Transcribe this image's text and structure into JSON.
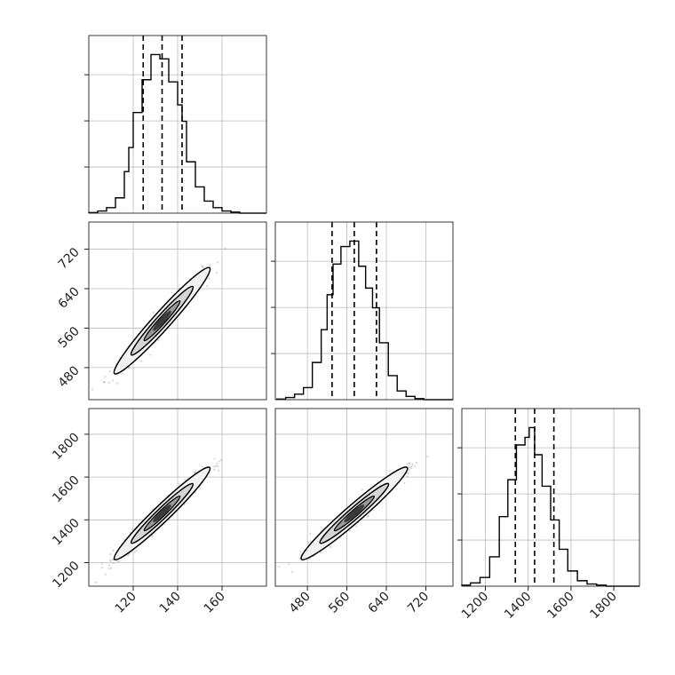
{
  "chart_data": {
    "type": "corner",
    "colors": {
      "line": "#000000",
      "grid": "#bbbbbb",
      "scatter": "#444444",
      "axis": "#222222"
    },
    "grid": true,
    "parameters": [
      {
        "range": [
          100,
          180
        ],
        "ticks": [
          120,
          140,
          160
        ],
        "tick_labels": [
          "120",
          "140",
          "160"
        ],
        "quantiles": [
          124.5,
          133,
          142
        ]
      },
      {
        "range": [
          415,
          775
        ],
        "ticks": [
          480,
          560,
          640,
          720
        ],
        "tick_labels": [
          "480",
          "560",
          "640",
          "720"
        ],
        "quantiles": [
          530,
          575,
          620
        ]
      },
      {
        "range": [
          1090,
          1920
        ],
        "ticks": [
          1200,
          1400,
          1600,
          1800
        ],
        "tick_labels": [
          "1200",
          "1400",
          "1600",
          "1800"
        ],
        "quantiles": [
          1340,
          1430,
          1520
        ]
      }
    ],
    "histograms": [
      {
        "param": 0,
        "bins": [
          {
            "x0": 100,
            "x1": 104,
            "count": 0.5
          },
          {
            "x0": 104,
            "x1": 108,
            "count": 2
          },
          {
            "x0": 108,
            "x1": 112,
            "count": 5
          },
          {
            "x0": 112,
            "x1": 116,
            "count": 14
          },
          {
            "x0": 116,
            "x1": 118,
            "count": 38
          },
          {
            "x0": 118,
            "x1": 120,
            "count": 60
          },
          {
            "x0": 120,
            "x1": 124,
            "count": 92
          },
          {
            "x0": 124,
            "x1": 128,
            "count": 122
          },
          {
            "x0": 128,
            "x1": 132,
            "count": 145
          },
          {
            "x0": 132,
            "x1": 136,
            "count": 141
          },
          {
            "x0": 136,
            "x1": 140,
            "count": 120
          },
          {
            "x0": 140,
            "x1": 142,
            "count": 99
          },
          {
            "x0": 142,
            "x1": 144,
            "count": 84
          },
          {
            "x0": 144,
            "x1": 148,
            "count": 47
          },
          {
            "x0": 148,
            "x1": 152,
            "count": 24
          },
          {
            "x0": 152,
            "x1": 156,
            "count": 11
          },
          {
            "x0": 156,
            "x1": 160,
            "count": 5
          },
          {
            "x0": 160,
            "x1": 164,
            "count": 2
          },
          {
            "x0": 164,
            "x1": 168,
            "count": 1
          },
          {
            "x0": 168,
            "x1": 180,
            "count": 0
          }
        ]
      },
      {
        "param": 1,
        "bins": [
          {
            "x0": 418,
            "x1": 436,
            "count": 0.5
          },
          {
            "x0": 436,
            "x1": 454,
            "count": 2
          },
          {
            "x0": 454,
            "x1": 472,
            "count": 5
          },
          {
            "x0": 472,
            "x1": 490,
            "count": 11
          },
          {
            "x0": 490,
            "x1": 508,
            "count": 34
          },
          {
            "x0": 508,
            "x1": 520,
            "count": 64
          },
          {
            "x0": 520,
            "x1": 532,
            "count": 96
          },
          {
            "x0": 532,
            "x1": 548,
            "count": 124
          },
          {
            "x0": 548,
            "x1": 566,
            "count": 140
          },
          {
            "x0": 566,
            "x1": 584,
            "count": 145
          },
          {
            "x0": 584,
            "x1": 598,
            "count": 122
          },
          {
            "x0": 598,
            "x1": 612,
            "count": 102
          },
          {
            "x0": 612,
            "x1": 626,
            "count": 84
          },
          {
            "x0": 626,
            "x1": 644,
            "count": 52
          },
          {
            "x0": 644,
            "x1": 662,
            "count": 22
          },
          {
            "x0": 662,
            "x1": 680,
            "count": 8
          },
          {
            "x0": 680,
            "x1": 698,
            "count": 3
          },
          {
            "x0": 698,
            "x1": 716,
            "count": 1
          },
          {
            "x0": 716,
            "x1": 775,
            "count": 0
          }
        ]
      },
      {
        "param": 2,
        "bins": [
          {
            "x0": 1090,
            "x1": 1130,
            "count": 1
          },
          {
            "x0": 1130,
            "x1": 1175,
            "count": 3
          },
          {
            "x0": 1175,
            "x1": 1220,
            "count": 8
          },
          {
            "x0": 1220,
            "x1": 1265,
            "count": 27
          },
          {
            "x0": 1265,
            "x1": 1305,
            "count": 64
          },
          {
            "x0": 1305,
            "x1": 1345,
            "count": 98
          },
          {
            "x0": 1345,
            "x1": 1385,
            "count": 130
          },
          {
            "x0": 1385,
            "x1": 1405,
            "count": 137
          },
          {
            "x0": 1405,
            "x1": 1430,
            "count": 146
          },
          {
            "x0": 1430,
            "x1": 1465,
            "count": 121
          },
          {
            "x0": 1465,
            "x1": 1505,
            "count": 92
          },
          {
            "x0": 1505,
            "x1": 1545,
            "count": 61
          },
          {
            "x0": 1545,
            "x1": 1585,
            "count": 34
          },
          {
            "x0": 1585,
            "x1": 1630,
            "count": 14
          },
          {
            "x0": 1630,
            "x1": 1675,
            "count": 5
          },
          {
            "x0": 1675,
            "x1": 1720,
            "count": 2
          },
          {
            "x0": 1720,
            "x1": 1765,
            "count": 1
          },
          {
            "x0": 1765,
            "x1": 1920,
            "count": 0
          }
        ]
      }
    ],
    "scatter_panels": [
      {
        "x_param": 0,
        "y_param": 1,
        "mean": [
          133,
          575
        ],
        "sd": [
          9,
          45
        ],
        "corr": 0.97
      },
      {
        "x_param": 0,
        "y_param": 2,
        "mean": [
          133,
          1430
        ],
        "sd": [
          9,
          90
        ],
        "corr": 0.97
      },
      {
        "x_param": 1,
        "y_param": 2,
        "mean": [
          575,
          1430
        ],
        "sd": [
          45,
          90
        ],
        "corr": 0.97
      }
    ]
  }
}
